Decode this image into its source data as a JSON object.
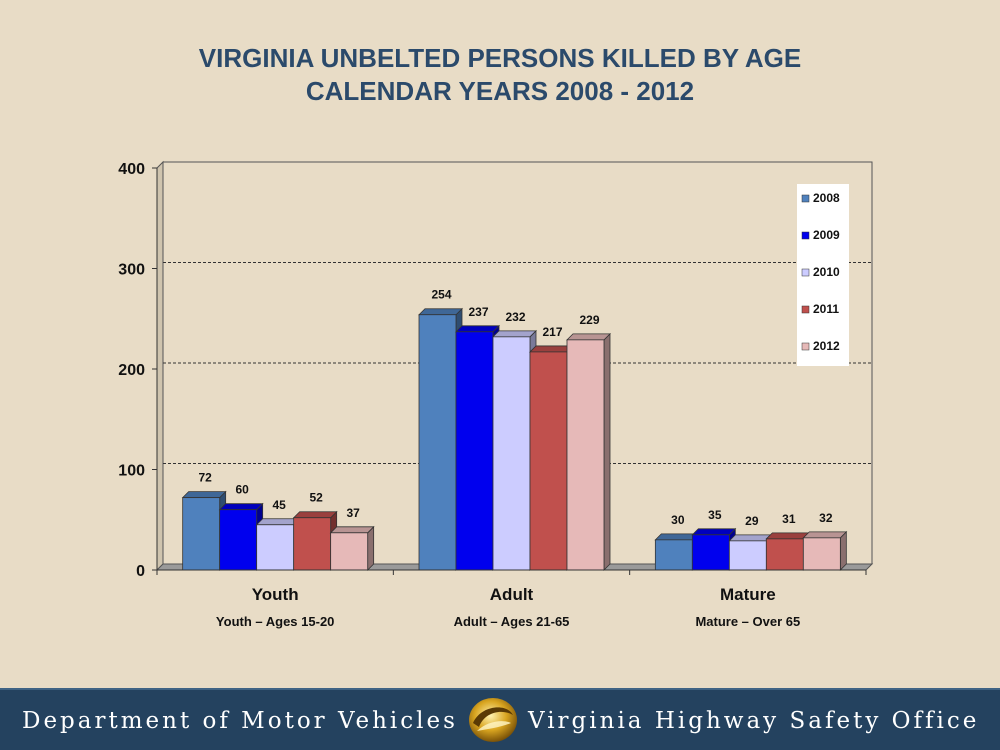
{
  "title": {
    "line1": "VIRGINIA UNBELTED PERSONS KILLED BY AGE",
    "line2": "CALENDAR YEARS 2008 - 2012"
  },
  "footer": {
    "left_text": "Department of Motor Vehicles",
    "right_text": "Virginia Highway Safety Office",
    "logo_icon": "dmv-swirl-logo-icon"
  },
  "colors": {
    "background": "#e8dcc6",
    "title": "#2b4a6b",
    "footer_bg": "#24425f"
  },
  "chart_data": {
    "type": "bar",
    "title": "VIRGINIA UNBELTED PERSONS KILLED BY AGE CALENDAR YEARS 2008 - 2012",
    "categories": [
      "Youth",
      "Adult",
      "Mature"
    ],
    "category_sublabels": [
      "Youth – Ages 15-20",
      "Adult – Ages 21-65",
      "Mature – Over 65"
    ],
    "series": [
      {
        "name": "2008",
        "color": "#4f81bd",
        "values": [
          72,
          254,
          30
        ]
      },
      {
        "name": "2009",
        "color": "#0000ee",
        "values": [
          60,
          237,
          35
        ]
      },
      {
        "name": "2010",
        "color": "#ccccff",
        "values": [
          45,
          232,
          29
        ]
      },
      {
        "name": "2011",
        "color": "#c0504d",
        "values": [
          52,
          217,
          31
        ]
      },
      {
        "name": "2012",
        "color": "#e6b9b8",
        "values": [
          37,
          229,
          32
        ]
      }
    ],
    "ylim": [
      0,
      400
    ],
    "yticks": [
      0,
      100,
      200,
      300,
      400
    ],
    "grid": true,
    "legend_position": "top-right",
    "xlabel": "",
    "ylabel": ""
  }
}
